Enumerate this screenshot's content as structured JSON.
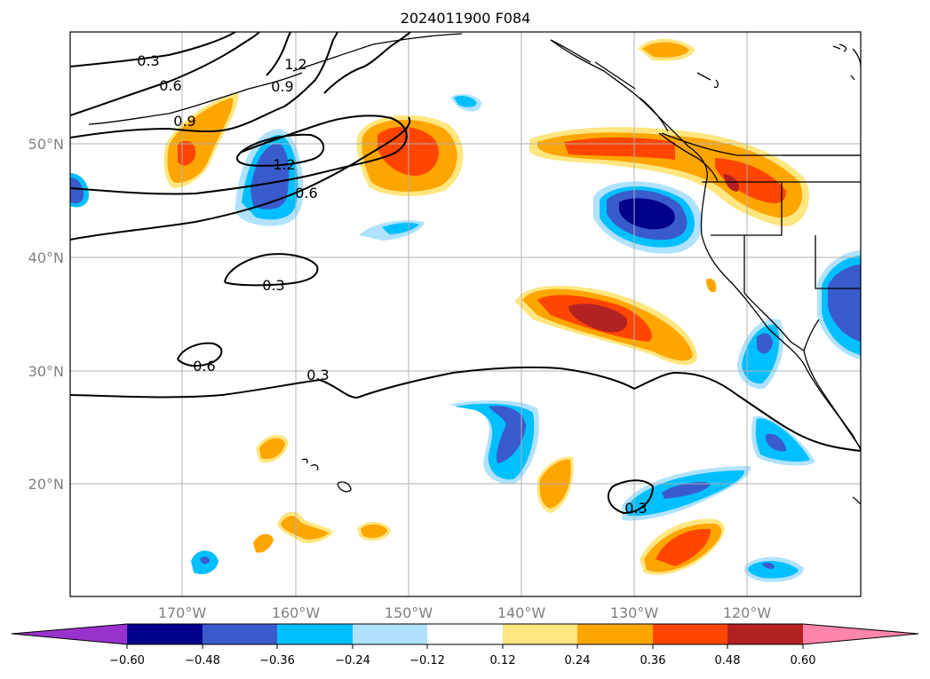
{
  "title": "2024011900 F084",
  "lat_labels": [
    "50°N",
    "40°N",
    "30°N",
    "20°N"
  ],
  "lon_labels": [
    "170°W",
    "160°W",
    "150°W",
    "140°W",
    "130°W",
    "120°W"
  ],
  "colorbar": {
    "ticks": [
      "−0.60",
      "−0.48",
      "−0.36",
      "−0.24",
      "−0.12",
      "0.12",
      "0.24",
      "0.36",
      "0.48",
      "0.60"
    ],
    "colors": [
      "#9932cc",
      "#00008b",
      "#3a5bcc",
      "#00bfff",
      "#b0e2ff",
      "#ffffff",
      "#ffe680",
      "#ffa500",
      "#ff4500",
      "#b22222",
      "#ff85aa"
    ]
  },
  "contour_labels": [
    "0.3",
    "0.6",
    "1.2",
    "0.9",
    "0.9",
    "1.2",
    "0.6",
    "0.3",
    "0.6",
    "0.3",
    "0.3"
  ]
}
